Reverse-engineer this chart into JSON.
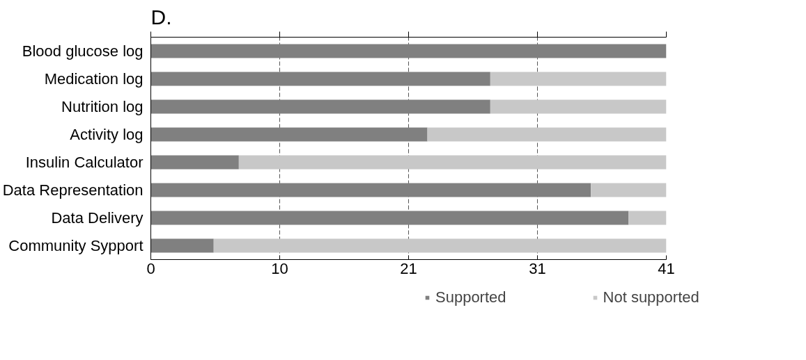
{
  "chart_data": {
    "type": "bar",
    "orientation": "horizontal",
    "stacked": true,
    "title": "D.",
    "categories": [
      "Blood glucose log",
      "Medication log",
      "Nutrition log",
      "Activity log",
      "Insulin Calculator",
      "Data Representation",
      "Data Delivery",
      "Community Sypport"
    ],
    "series": [
      {
        "name": "Supported",
        "color": "#808080",
        "values": [
          41,
          27,
          27,
          22,
          7,
          35,
          38,
          5
        ]
      },
      {
        "name": "Not supported",
        "color": "#c8c8c8",
        "values": [
          0,
          14,
          14,
          19,
          34,
          6,
          3,
          36
        ]
      }
    ],
    "xlim": [
      0,
      41
    ],
    "xticks": [
      0,
      {
        "value": 10.25,
        "label": "10"
      },
      {
        "value": 20.5,
        "label": "21"
      },
      {
        "value": 30.75,
        "label": "31"
      },
      41
    ],
    "grid": "x",
    "legend": "bottom"
  }
}
